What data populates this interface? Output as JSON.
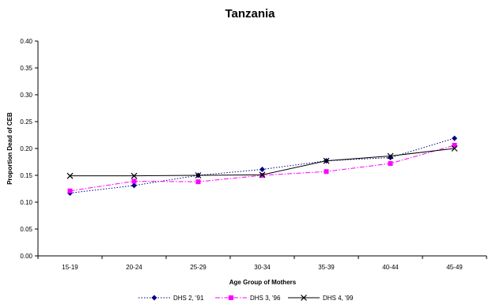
{
  "chart_data": {
    "type": "line",
    "title": "Tanzania",
    "xlabel": "Age Group of Mothers",
    "ylabel": "Proportion Dead of CEB",
    "categories": [
      "15-19",
      "20-24",
      "25-29",
      "30-34",
      "35-39",
      "40-44",
      "45-49"
    ],
    "y_ticks": [
      "0.00",
      "0.05",
      "0.10",
      "0.15",
      "0.20",
      "0.25",
      "0.30",
      "0.35",
      "0.40"
    ],
    "ylim": [
      0,
      0.4
    ],
    "grid": false,
    "legend_position": "bottom",
    "series": [
      {
        "name": "DHS 2, '91",
        "values": [
          0.117,
          0.131,
          0.15,
          0.161,
          0.177,
          0.183,
          0.219
        ],
        "color": "#000080",
        "marker": "diamond",
        "dash": "dotted"
      },
      {
        "name": "DHS 3, '96",
        "values": [
          0.121,
          0.139,
          0.138,
          0.15,
          0.157,
          0.172,
          0.206
        ],
        "color": "#ff00ff",
        "marker": "square",
        "dash": "dashdot"
      },
      {
        "name": "DHS 4, '99",
        "values": [
          0.149,
          0.149,
          0.15,
          0.151,
          0.177,
          0.186,
          0.2
        ],
        "color": "#000000",
        "marker": "x",
        "dash": "solid"
      }
    ]
  }
}
